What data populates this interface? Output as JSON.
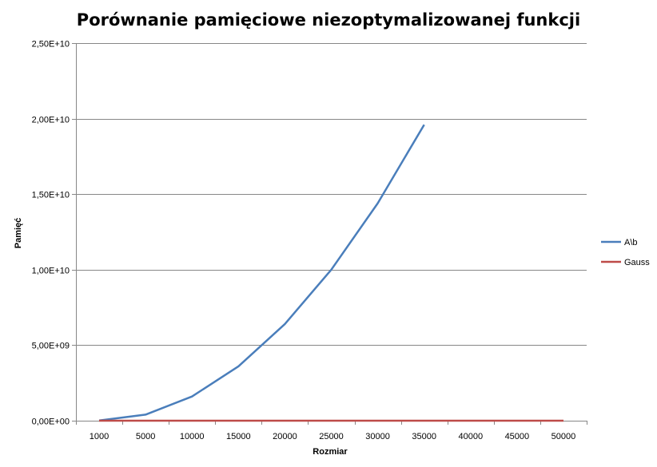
{
  "chart_data": {
    "type": "line",
    "title": "Porównanie pamięciowe niezoptymalizowanej funkcji",
    "xlabel": "Rozmiar",
    "ylabel": "Pamięć",
    "categories": [
      "1000",
      "5000",
      "10000",
      "15000",
      "20000",
      "25000",
      "30000",
      "35000",
      "40000",
      "45000",
      "50000"
    ],
    "ylim": [
      0,
      25000000000
    ],
    "yticks": [
      0,
      5000000000,
      10000000000,
      15000000000,
      20000000000,
      25000000000
    ],
    "ytick_labels": [
      "0,00E+00",
      "5,00E+09",
      "1,00E+10",
      "1,50E+10",
      "2,00E+10",
      "2,50E+10"
    ],
    "grid": true,
    "legend_position": "right",
    "series": [
      {
        "name": "A\\b",
        "color": "#4a7ebb",
        "values": [
          8000000,
          400000000,
          1600000000,
          3600000000,
          6400000000,
          10000000000,
          14400000000,
          19600000000,
          null,
          null,
          null
        ]
      },
      {
        "name": "Gauss",
        "color": "#be4b48",
        "values": [
          0,
          0,
          0,
          0,
          0,
          0,
          0,
          0,
          0,
          0,
          0
        ]
      }
    ]
  }
}
